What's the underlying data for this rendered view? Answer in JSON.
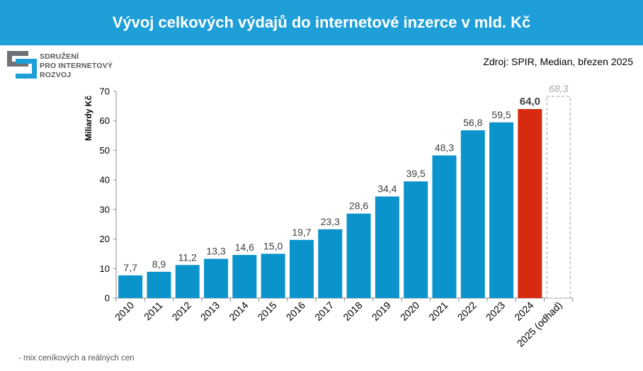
{
  "header": {
    "title": "Vývoj celkových výdajů do internetové inzerce v mld. Kč"
  },
  "logo": {
    "lines": [
      "SDRUŽENÍ",
      "PRO INTERNETOVÝ",
      "ROZVOJ"
    ]
  },
  "source": "Zdroj: SPIR, Median, březen 2025",
  "footnote": "- mix ceníkových a reálných cen",
  "colors": {
    "header": "#1f9fd8",
    "bar": "#0b93cc",
    "highlight": "#d62b0f",
    "estimate_border": "#b0b0b0"
  },
  "chart_data": {
    "type": "bar",
    "title": "Vývoj celkových výdajů do internetové inzerce v mld. Kč",
    "xlabel": "",
    "ylabel": "Miliardy Kč",
    "ylim": [
      0,
      70
    ],
    "yticks": [
      0,
      10,
      20,
      30,
      40,
      50,
      60,
      70
    ],
    "grid": false,
    "categories": [
      "2010",
      "2011",
      "2012",
      "2013",
      "2014",
      "2015",
      "2016",
      "2017",
      "2018",
      "2019",
      "2020",
      "2021",
      "2022",
      "2023",
      "2024",
      "2025 (odhad)"
    ],
    "values": [
      7.7,
      8.9,
      11.2,
      13.3,
      14.6,
      15.0,
      19.7,
      23.3,
      28.6,
      34.4,
      39.5,
      48.3,
      56.8,
      59.5,
      64.0,
      68.3
    ],
    "labels": [
      "7,7",
      "8,9",
      "11,2",
      "13,3",
      "14,6",
      "15,0",
      "19,7",
      "23,3",
      "28,6",
      "34,4",
      "39,5",
      "48,3",
      "56,8",
      "59,5",
      "64,0",
      "68,3"
    ],
    "styles": [
      "normal",
      "normal",
      "normal",
      "normal",
      "normal",
      "normal",
      "normal",
      "normal",
      "normal",
      "normal",
      "normal",
      "normal",
      "normal",
      "normal",
      "highlight",
      "estimate"
    ]
  }
}
